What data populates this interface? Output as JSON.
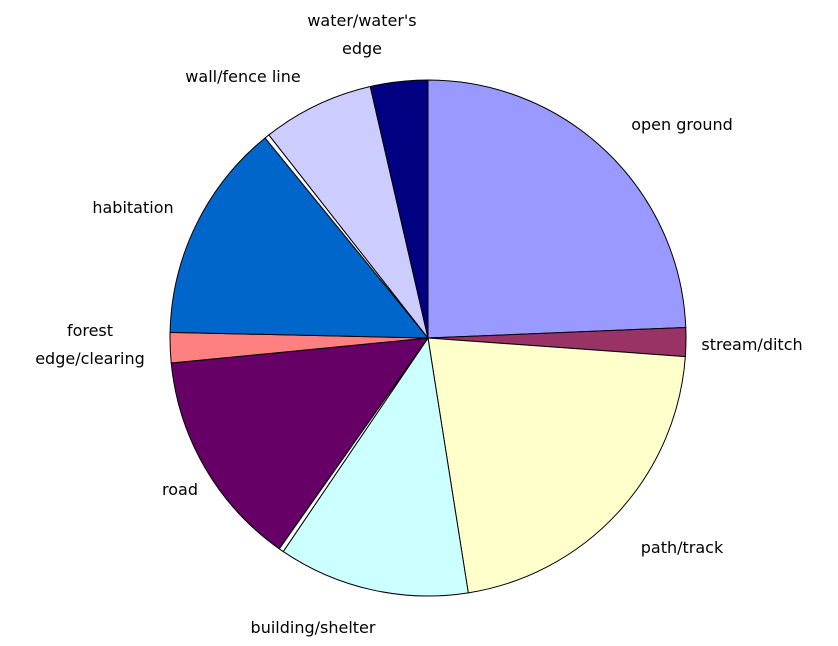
{
  "chart_data": {
    "type": "pie",
    "categories": [
      "open ground",
      "stream/ditch",
      "path/track",
      "building/shelter",
      null,
      "road",
      "forest edge/clearing",
      "habitation",
      null,
      "wall/fence line",
      "water/water's edge"
    ],
    "values": [
      24.4,
      1.8,
      21.4,
      12,
      0.3,
      13.7,
      1.9,
      13.8,
      0.3,
      7,
      3.6
    ],
    "colors": [
      "#9999ff",
      "#993366",
      "#ffffcc",
      "#ccffff",
      "#ffffff",
      "#660066",
      "#ff8080",
      "#0066cc",
      "#ffffff",
      "#ccccff",
      "#000080"
    ]
  }
}
